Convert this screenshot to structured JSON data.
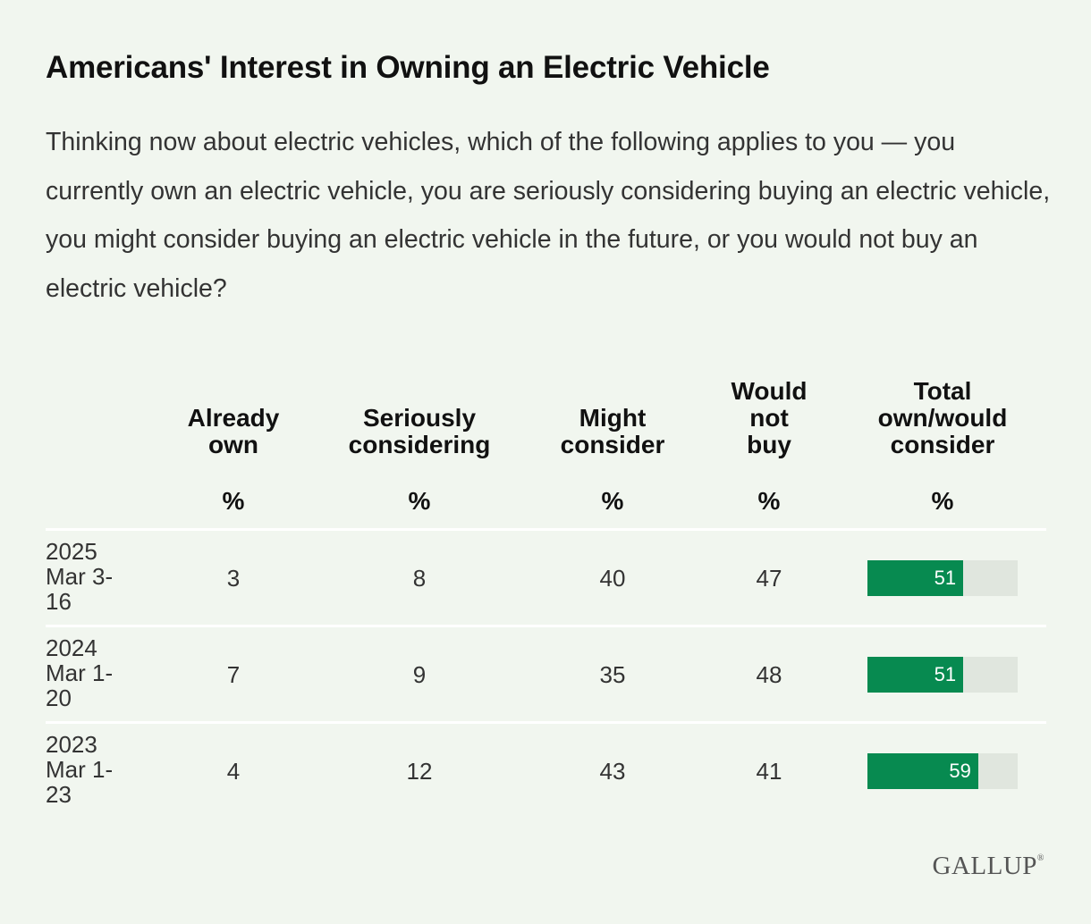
{
  "title": "Americans' Interest in Owning an Electric Vehicle",
  "subtitle": "Thinking now about electric vehicles, which of the following applies to you — you currently own an electric vehicle, you are seriously considering buying an electric vehicle, you might consider buying an electric vehicle in the future, or you would not buy an electric vehicle?",
  "logo": "GALLUP",
  "colors": {
    "background": "#f1f6ef",
    "bar_fill": "#078a50",
    "bar_track": "#e0e6de"
  },
  "chart_data": {
    "type": "table",
    "columns": [
      {
        "key": "already_own",
        "header_lines": [
          "Already",
          "own"
        ],
        "unit": "%"
      },
      {
        "key": "seriously_considering",
        "header_lines": [
          "Seriously",
          "considering"
        ],
        "unit": "%"
      },
      {
        "key": "might_consider",
        "header_lines": [
          "Might",
          "consider"
        ],
        "unit": "%"
      },
      {
        "key": "would_not_buy",
        "header_lines": [
          "Would",
          "not",
          "buy"
        ],
        "unit": "%"
      },
      {
        "key": "total",
        "header_lines": [
          "Total",
          "own/would",
          "consider"
        ],
        "unit": "%"
      }
    ],
    "rows": [
      {
        "label_lines": [
          "2025",
          "Mar 3-",
          "16"
        ],
        "already_own": 3,
        "seriously_considering": 8,
        "might_consider": 40,
        "would_not_buy": 47,
        "total": 51
      },
      {
        "label_lines": [
          "2024",
          "Mar 1-",
          "20"
        ],
        "already_own": 7,
        "seriously_considering": 9,
        "might_consider": 35,
        "would_not_buy": 48,
        "total": 51
      },
      {
        "label_lines": [
          "2023",
          "Mar 1-",
          "23"
        ],
        "already_own": 4,
        "seriously_considering": 12,
        "might_consider": 43,
        "would_not_buy": 41,
        "total": 59
      }
    ],
    "total_bar_max": 80
  }
}
